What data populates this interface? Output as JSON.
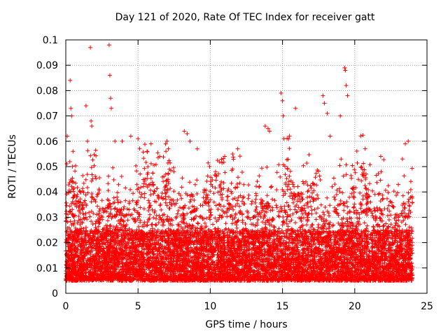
{
  "chart_data": {
    "type": "scatter",
    "title": "Day 121 of 2020, Rate Of TEC Index for receiver gatt",
    "xlabel": "GPS time / hours",
    "ylabel": "ROTI / TECUs",
    "xlim": [
      0,
      25
    ],
    "ylim": [
      0,
      0.1
    ],
    "xticks": [
      "0",
      "5",
      "10",
      "15",
      "20",
      "25"
    ],
    "yticks": [
      "0",
      "0.01",
      "0.02",
      "0.03",
      "0.04",
      "0.05",
      "0.06",
      "0.07",
      "0.08",
      "0.09",
      "0.1"
    ],
    "grid": true,
    "marker": "+",
    "color": "#ff0000",
    "points_x": [
      0.1,
      0.3,
      0.35,
      0.4,
      0.5,
      1.4,
      1.7,
      1.75,
      1.8,
      3.0,
      3.05,
      3.1,
      3.15,
      3.4,
      3.9,
      4.5,
      5.0,
      5.9,
      6.5,
      7.0,
      7.1,
      8.2,
      8.4,
      8.6,
      9.1,
      11.0,
      11.9,
      13.8,
      14.0,
      14.1,
      14.9,
      15.0,
      15.05,
      15.1,
      15.9,
      17.8,
      17.9,
      18.1,
      18.3,
      19.0,
      19.3,
      19.35,
      19.4,
      19.5,
      21.8,
      23.3,
      23.5,
      23.7
    ],
    "points_y": [
      0.062,
      0.084,
      0.073,
      0.07,
      0.056,
      0.074,
      0.097,
      0.068,
      0.066,
      0.098,
      0.086,
      0.077,
      0.073,
      0.06,
      0.06,
      0.062,
      0.061,
      0.059,
      0.054,
      0.06,
      0.057,
      0.064,
      0.063,
      0.06,
      0.057,
      0.054,
      0.057,
      0.066,
      0.065,
      0.064,
      0.079,
      0.076,
      0.07,
      0.061,
      0.073,
      0.078,
      0.075,
      0.071,
      0.062,
      0.07,
      0.089,
      0.088,
      0.082,
      0.078,
      0.054,
      0.053,
      0.059,
      0.06
    ]
  }
}
